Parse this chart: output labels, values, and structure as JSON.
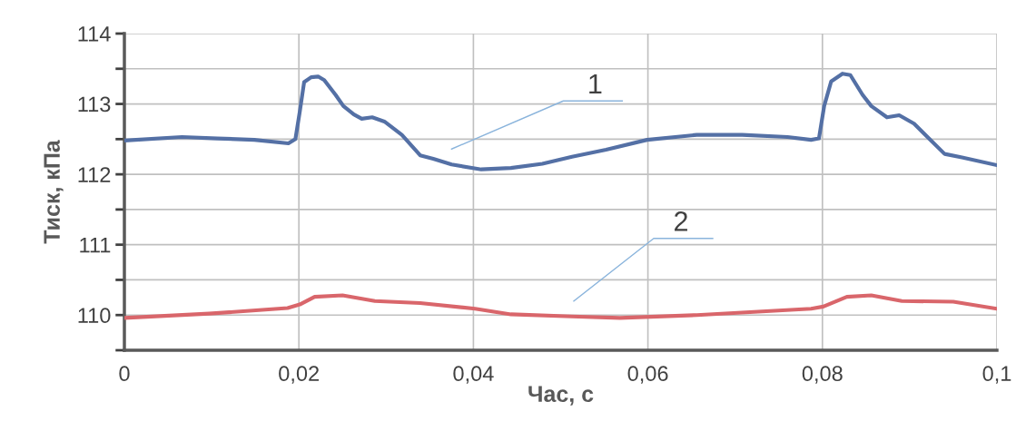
{
  "chart_data": {
    "type": "line",
    "xlabel": "Час, с",
    "ylabel": "Тиск, кПа",
    "xlim": [
      0,
      0.1
    ],
    "ylim": [
      109.5,
      114
    ],
    "xticks": [
      0,
      {
        "value": 0.02,
        "label": "0,02"
      },
      {
        "value": 0.04,
        "label": "0,04"
      },
      {
        "value": 0.06,
        "label": "0,06"
      },
      {
        "value": 0.08,
        "label": "0,08"
      },
      {
        "value": 0.1,
        "label": "0,1"
      }
    ],
    "yticks": [
      {
        "value": 109.5,
        "label": null
      },
      110,
      {
        "value": 110.5,
        "label": null
      },
      111,
      {
        "value": 111.5,
        "label": null
      },
      112,
      {
        "value": 112.5,
        "label": null
      },
      113,
      {
        "value": 113.5,
        "label": null
      },
      114
    ],
    "grid": true,
    "marker": "none",
    "line_style": "solid",
    "series": [
      {
        "name": "1",
        "color": "#5470a5",
        "x": [
          0,
          0.0066,
          0.0107,
          0.0149,
          0.0188,
          0.0196,
          0.0201,
          0.0206,
          0.0214,
          0.0222,
          0.0229,
          0.0242,
          0.0251,
          0.0263,
          0.0272,
          0.0284,
          0.0298,
          0.0318,
          0.0339,
          0.0354,
          0.0375,
          0.0409,
          0.0443,
          0.0479,
          0.0513,
          0.0552,
          0.0599,
          0.0656,
          0.0708,
          0.076,
          0.0787,
          0.0796,
          0.0802,
          0.081,
          0.0823,
          0.0832,
          0.0846,
          0.0856,
          0.0874,
          0.0888,
          0.0905,
          0.0922,
          0.094,
          0.096,
          0.1
        ],
        "values": [
          112.48,
          112.53,
          112.51,
          112.49,
          112.44,
          112.5,
          112.89,
          113.31,
          113.38,
          113.39,
          113.34,
          113.13,
          112.97,
          112.85,
          112.79,
          112.81,
          112.75,
          112.56,
          112.27,
          112.22,
          112.14,
          112.07,
          112.09,
          112.15,
          112.25,
          112.35,
          112.49,
          112.56,
          112.56,
          112.53,
          112.49,
          112.51,
          112.97,
          113.32,
          113.43,
          113.41,
          113.13,
          112.97,
          112.81,
          112.84,
          112.72,
          112.51,
          112.29,
          112.24,
          112.13
        ]
      },
      {
        "name": "2",
        "color": "#d9666b",
        "x": [
          0,
          0.0097,
          0.0187,
          0.0201,
          0.0218,
          0.025,
          0.0287,
          0.0339,
          0.0402,
          0.0443,
          0.0513,
          0.0568,
          0.0656,
          0.0787,
          0.0801,
          0.0828,
          0.0856,
          0.0891,
          0.095,
          0.1
        ],
        "values": [
          109.96,
          110.02,
          110.1,
          110.15,
          110.26,
          110.28,
          110.2,
          110.17,
          110.09,
          110.01,
          109.98,
          109.96,
          110.0,
          110.09,
          110.12,
          110.26,
          110.28,
          110.2,
          110.19,
          110.09
        ]
      }
    ]
  }
}
